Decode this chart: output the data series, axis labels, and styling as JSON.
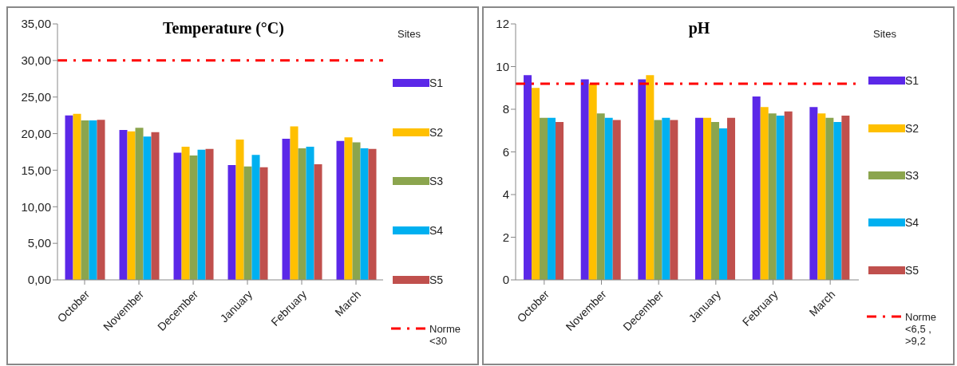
{
  "chart_data": [
    {
      "type": "bar",
      "title": "Temperature (°C)",
      "legend_title": "Sites",
      "legend": "right",
      "grid": false,
      "categories": [
        "October",
        "November",
        "December",
        "January",
        "February",
        "March"
      ],
      "series": [
        {
          "name": "S1",
          "color": "#5b28e8",
          "values": [
            22.5,
            20.5,
            17.4,
            15.7,
            19.3,
            19.0
          ]
        },
        {
          "name": "S2",
          "color": "#ffc000",
          "values": [
            22.7,
            20.3,
            18.2,
            19.2,
            21.0,
            19.5
          ]
        },
        {
          "name": "S3",
          "color": "#8ba54e",
          "values": [
            21.8,
            20.8,
            17.0,
            15.5,
            18.0,
            18.8
          ]
        },
        {
          "name": "S4",
          "color": "#00b0f0",
          "values": [
            21.8,
            19.6,
            17.8,
            17.1,
            18.2,
            18.0
          ]
        },
        {
          "name": "S5",
          "color": "#c0504d",
          "values": [
            21.9,
            20.2,
            17.9,
            15.4,
            15.8,
            17.9
          ]
        }
      ],
      "ylim": [
        0,
        35
      ],
      "yticks": [
        {
          "value": 0,
          "label": "0,00"
        },
        {
          "value": 5,
          "label": "5,00"
        },
        {
          "value": 10,
          "label": "10,00"
        },
        {
          "value": 15,
          "label": "15,00"
        },
        {
          "value": 20,
          "label": "20,00"
        },
        {
          "value": 25,
          "label": "25,00"
        },
        {
          "value": 30,
          "label": "30,00"
        },
        {
          "value": 35,
          "label": "35,00"
        }
      ],
      "ref_lines": [
        {
          "axis": "y",
          "value": 30,
          "label": "Norme <30",
          "color": "#ff0000",
          "line_style": "dashdot"
        }
      ]
    },
    {
      "type": "bar",
      "title": "pH",
      "legend_title": "Sites",
      "legend": "right",
      "grid": false,
      "categories": [
        "October",
        "November",
        "December",
        "January",
        "February",
        "March"
      ],
      "series": [
        {
          "name": "S1",
          "color": "#5b28e8",
          "values": [
            9.6,
            9.4,
            9.4,
            7.6,
            8.6,
            8.1
          ]
        },
        {
          "name": "S2",
          "color": "#ffc000",
          "values": [
            9.0,
            9.2,
            9.6,
            7.6,
            8.1,
            7.8
          ]
        },
        {
          "name": "S3",
          "color": "#8ba54e",
          "values": [
            7.6,
            7.8,
            7.5,
            7.4,
            7.8,
            7.6
          ]
        },
        {
          "name": "S4",
          "color": "#00b0f0",
          "values": [
            7.6,
            7.6,
            7.6,
            7.1,
            7.7,
            7.4
          ]
        },
        {
          "name": "S5",
          "color": "#c0504d",
          "values": [
            7.4,
            7.5,
            7.5,
            7.6,
            7.9,
            7.7
          ]
        }
      ],
      "ylim": [
        0,
        12
      ],
      "yticks": [
        0,
        2,
        4,
        6,
        8,
        10,
        12
      ],
      "ref_lines": [
        {
          "axis": "y",
          "value": 9.2,
          "label": "Norme <6,5 , >9,2",
          "color": "#ff0000",
          "line_style": "dashdot"
        }
      ]
    }
  ]
}
